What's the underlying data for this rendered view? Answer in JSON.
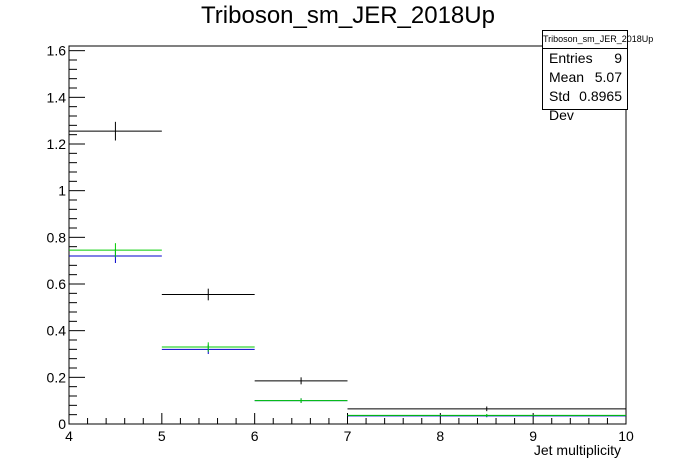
{
  "title": "Triboson_sm_JER_2018Up",
  "stats": {
    "name": "Triboson_sm_JER_2018Up",
    "rows": [
      {
        "label": "Entries",
        "value": "9"
      },
      {
        "label": "Mean",
        "value": "5.07"
      },
      {
        "label": "Std Dev",
        "value": "0.8965"
      }
    ]
  },
  "chart_data": {
    "type": "histogram",
    "title": "Triboson_sm_JER_2018Up",
    "xlabel": "Jet multiplicity",
    "ylabel": "",
    "xlim": [
      4,
      10
    ],
    "ylim": [
      0,
      1.62
    ],
    "xticks": [
      4,
      5,
      6,
      7,
      8,
      9,
      10
    ],
    "yticks": [
      0,
      0.2,
      0.4,
      0.6,
      0.8,
      1,
      1.2,
      1.4,
      1.6
    ],
    "grid": false,
    "series": [
      {
        "color": "#000000",
        "bins": [
          {
            "x0": 4,
            "x1": 5,
            "y": 1.255,
            "err": 0.04
          },
          {
            "x0": 5,
            "x1": 6,
            "y": 0.555,
            "err": 0.025
          },
          {
            "x0": 6,
            "x1": 7,
            "y": 0.185,
            "err": 0.015
          },
          {
            "x0": 7,
            "x1": 10,
            "y": 0.065,
            "err": 0.01
          }
        ]
      },
      {
        "color": "#00cc00",
        "bins": [
          {
            "x0": 4,
            "x1": 5,
            "y": 0.745,
            "err": 0.03
          },
          {
            "x0": 5,
            "x1": 6,
            "y": 0.33,
            "err": 0.02
          },
          {
            "x0": 6,
            "x1": 7,
            "y": 0.1,
            "err": 0.01
          },
          {
            "x0": 7,
            "x1": 10,
            "y": 0.037,
            "err": 0.006
          }
        ]
      },
      {
        "color": "#0000cc",
        "bins": [
          {
            "x0": 4,
            "x1": 5,
            "y": 0.72,
            "err": 0.03
          },
          {
            "x0": 5,
            "x1": 6,
            "y": 0.32,
            "err": 0.02
          },
          {
            "x0": 6,
            "x1": 7,
            "y": 0.1,
            "err": 0.01
          },
          {
            "x0": 7,
            "x1": 10,
            "y": 0.035,
            "err": 0.006
          }
        ]
      }
    ]
  }
}
